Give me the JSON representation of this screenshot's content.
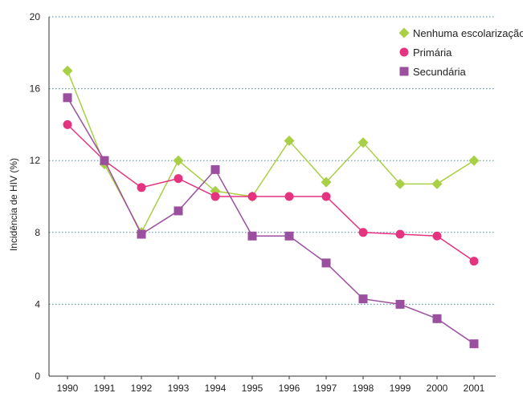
{
  "chart_data": {
    "type": "line",
    "ylabel": "Incidência de HIV (%)",
    "xlabel": "",
    "title": "",
    "ylim": [
      0,
      20
    ],
    "yticks": [
      0,
      4,
      8,
      12,
      16,
      20
    ],
    "grid": true,
    "legend_position": "top-right",
    "categories": [
      "1990",
      "1991",
      "1992",
      "1993",
      "1994",
      "1995",
      "1996",
      "1997",
      "1998",
      "1999",
      "2000",
      "2001"
    ],
    "series": [
      {
        "name": "Nenhuma escolarização",
        "marker": "diamond",
        "color": "#a8cf45",
        "values": [
          17,
          11.8,
          8,
          12,
          10.3,
          10,
          13.1,
          10.8,
          13,
          10.7,
          10.7,
          12
        ]
      },
      {
        "name": "Primária",
        "marker": "circle",
        "color": "#e5337f",
        "values": [
          14,
          12,
          10.5,
          11,
          10,
          10,
          10,
          10,
          8,
          7.9,
          7.8,
          6.4
        ]
      },
      {
        "name": "Secundária",
        "marker": "square",
        "color": "#9b4f9f",
        "values": [
          15.5,
          12,
          7.9,
          9.2,
          11.5,
          7.8,
          7.8,
          6.3,
          4.3,
          4,
          3.2,
          1.8
        ]
      }
    ]
  }
}
